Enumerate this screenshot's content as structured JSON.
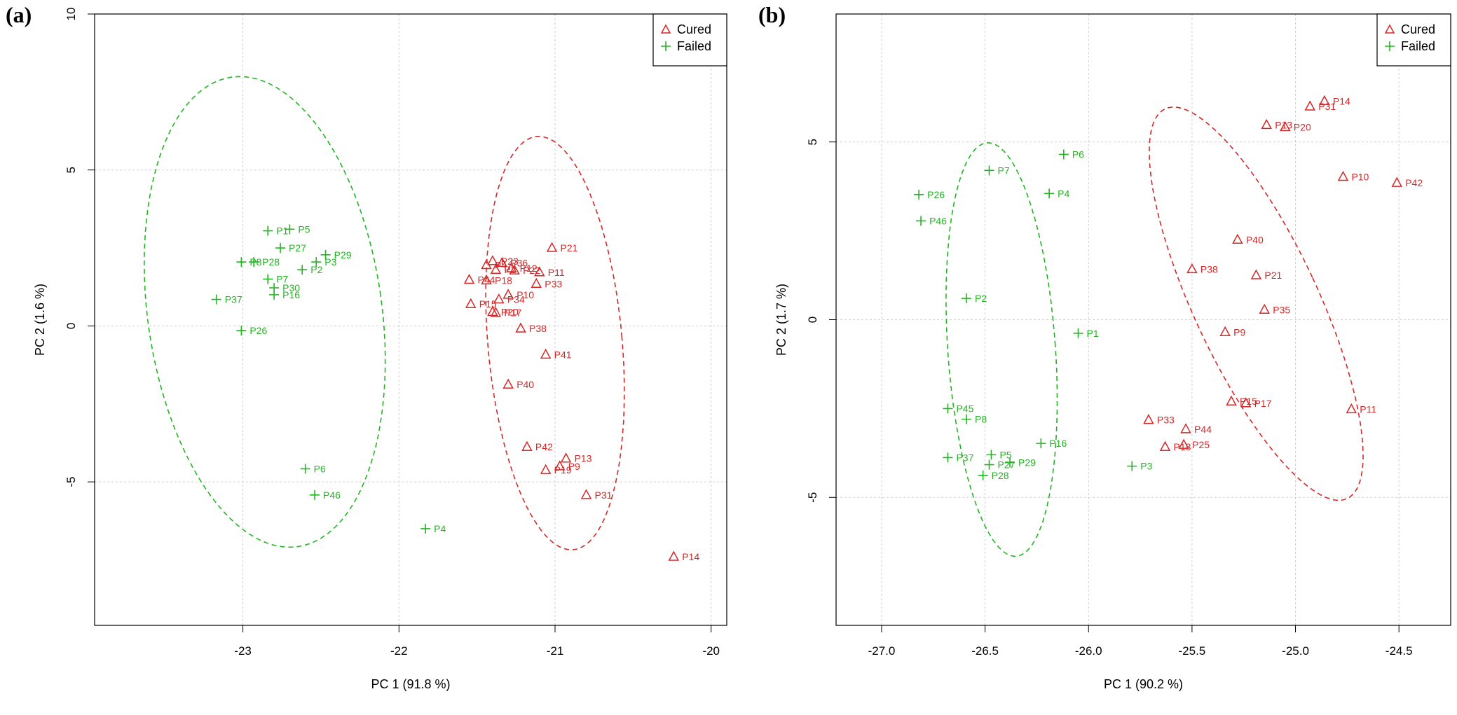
{
  "colors": {
    "cured": "#d62728",
    "failed": "#22b522",
    "axis": "#000000",
    "grid": "#cfcfcf"
  },
  "chart_data": [
    {
      "panel": "(a)",
      "type": "scatter",
      "xlabel": "PC 1 (91.8 %)",
      "ylabel": "PC 2 (1.6 %)",
      "xlim": [
        -23.95,
        -19.9
      ],
      "ylim": [
        -9.6,
        10
      ],
      "xticks": [
        -23,
        -22,
        -21,
        -20
      ],
      "yticks": [
        -5,
        0,
        5,
        10
      ],
      "grid": true,
      "legend": {
        "position": "top-right",
        "entries": [
          "Cured",
          "Failed"
        ]
      },
      "series": [
        {
          "name": "Cured",
          "marker": "triangle",
          "points": [
            {
              "x": -21.02,
              "y": 2.5,
              "label": "P21"
            },
            {
              "x": -21.4,
              "y": 2.08,
              "label": "P23"
            },
            {
              "x": -21.34,
              "y": 2.02,
              "label": "P36"
            },
            {
              "x": -21.44,
              "y": 1.95,
              "label": "P4"
            },
            {
              "x": -21.28,
              "y": 1.85,
              "label": "P12"
            },
            {
              "x": -21.38,
              "y": 1.8,
              "label": "P2"
            },
            {
              "x": -21.26,
              "y": 1.78,
              "label": "P22"
            },
            {
              "x": -21.1,
              "y": 1.72,
              "label": "P11"
            },
            {
              "x": -21.55,
              "y": 1.48,
              "label": "P44"
            },
            {
              "x": -21.44,
              "y": 1.46,
              "label": "P18"
            },
            {
              "x": -21.12,
              "y": 1.35,
              "label": "P33"
            },
            {
              "x": -21.3,
              "y": 1.0,
              "label": "P10"
            },
            {
              "x": -21.36,
              "y": 0.85,
              "label": "P34"
            },
            {
              "x": -21.54,
              "y": 0.7,
              "label": "P15"
            },
            {
              "x": -21.4,
              "y": 0.45,
              "label": "P20"
            },
            {
              "x": -21.38,
              "y": 0.42,
              "label": "P17"
            },
            {
              "x": -21.22,
              "y": -0.08,
              "label": "P38"
            },
            {
              "x": -21.06,
              "y": -0.92,
              "label": "P41"
            },
            {
              "x": -21.3,
              "y": -1.88,
              "label": "P40"
            },
            {
              "x": -21.18,
              "y": -3.88,
              "label": "P42"
            },
            {
              "x": -20.93,
              "y": -4.25,
              "label": "P13"
            },
            {
              "x": -20.97,
              "y": -4.5,
              "label": "P9"
            },
            {
              "x": -21.06,
              "y": -4.62,
              "label": "P19"
            },
            {
              "x": -20.8,
              "y": -5.42,
              "label": "P31"
            },
            {
              "x": -20.24,
              "y": -7.4,
              "label": "P14"
            }
          ]
        },
        {
          "name": "Failed",
          "marker": "plus",
          "points": [
            {
              "x": -22.7,
              "y": 3.1,
              "label": "P5"
            },
            {
              "x": -22.84,
              "y": 3.05,
              "label": "P1"
            },
            {
              "x": -22.76,
              "y": 2.5,
              "label": "P27"
            },
            {
              "x": -22.47,
              "y": 2.28,
              "label": "P29"
            },
            {
              "x": -22.53,
              "y": 2.05,
              "label": "P3"
            },
            {
              "x": -23.01,
              "y": 2.05,
              "label": "P8"
            },
            {
              "x": -22.93,
              "y": 2.05,
              "label": "P28"
            },
            {
              "x": -22.62,
              "y": 1.8,
              "label": "P2"
            },
            {
              "x": -22.84,
              "y": 1.5,
              "label": "P7"
            },
            {
              "x": -22.8,
              "y": 1.22,
              "label": "P30"
            },
            {
              "x": -22.8,
              "y": 1.0,
              "label": "P16"
            },
            {
              "x": -23.17,
              "y": 0.85,
              "label": "P37"
            },
            {
              "x": -23.01,
              "y": -0.15,
              "label": "P26"
            },
            {
              "x": -22.6,
              "y": -4.58,
              "label": "P6"
            },
            {
              "x": -22.54,
              "y": -5.42,
              "label": "P46"
            },
            {
              "x": -21.83,
              "y": -6.5,
              "label": "P4"
            }
          ]
        }
      ],
      "ellipses": [
        {
          "group": "Failed",
          "center": [
            -22.86,
            0.45
          ],
          "semi_axes": [
            0.75,
            7.6
          ],
          "rotation_deg": 8
        },
        {
          "group": "Cured",
          "center": [
            -21.0,
            -0.55
          ],
          "semi_axes": [
            0.43,
            6.65
          ],
          "rotation_deg": 5
        }
      ]
    },
    {
      "panel": "(b)",
      "type": "scatter",
      "xlabel": "PC 1 (90.2 %)",
      "ylabel": "PC 2 (1.7 %)",
      "xlim": [
        -27.22,
        -24.25
      ],
      "ylim": [
        -8.6,
        8.6
      ],
      "xticks": [
        -27.0,
        -26.5,
        -26.0,
        -25.5,
        -25.0,
        -24.5
      ],
      "xtick_labels": [
        "-27.0",
        "-26.5",
        "-26.0",
        "-25.5",
        "-25.0",
        "-24.5"
      ],
      "yticks": [
        -5,
        0,
        5
      ],
      "grid": true,
      "legend": {
        "position": "top-right",
        "entries": [
          "Cured",
          "Failed"
        ]
      },
      "series": [
        {
          "name": "Cured",
          "marker": "triangle",
          "points": [
            {
              "x": -24.86,
              "y": 6.15,
              "label": "P14"
            },
            {
              "x": -24.93,
              "y": 6.0,
              "label": "P31"
            },
            {
              "x": -25.14,
              "y": 5.48,
              "label": "P13"
            },
            {
              "x": -25.05,
              "y": 5.42,
              "label": "P20"
            },
            {
              "x": -24.77,
              "y": 4.02,
              "label": "P10"
            },
            {
              "x": -24.51,
              "y": 3.85,
              "label": "P42"
            },
            {
              "x": -25.28,
              "y": 2.25,
              "label": "P40"
            },
            {
              "x": -25.5,
              "y": 1.42,
              "label": "P38"
            },
            {
              "x": -25.19,
              "y": 1.25,
              "label": "P21"
            },
            {
              "x": -25.15,
              "y": 0.28,
              "label": "P35"
            },
            {
              "x": -25.34,
              "y": -0.35,
              "label": "P9"
            },
            {
              "x": -25.31,
              "y": -2.3,
              "label": "P15"
            },
            {
              "x": -25.24,
              "y": -2.35,
              "label": "P17"
            },
            {
              "x": -24.73,
              "y": -2.52,
              "label": "P11"
            },
            {
              "x": -25.71,
              "y": -2.82,
              "label": "P33"
            },
            {
              "x": -25.53,
              "y": -3.08,
              "label": "P44"
            },
            {
              "x": -25.54,
              "y": -3.52,
              "label": "P25"
            },
            {
              "x": -25.63,
              "y": -3.58,
              "label": "P18"
            }
          ]
        },
        {
          "name": "Failed",
          "marker": "plus",
          "points": [
            {
              "x": -26.12,
              "y": 4.65,
              "label": "P6"
            },
            {
              "x": -26.48,
              "y": 4.2,
              "label": "P7"
            },
            {
              "x": -26.82,
              "y": 3.52,
              "label": "P26"
            },
            {
              "x": -26.19,
              "y": 3.55,
              "label": "P4"
            },
            {
              "x": -26.81,
              "y": 2.78,
              "label": "P46"
            },
            {
              "x": -26.59,
              "y": 0.6,
              "label": "P2"
            },
            {
              "x": -26.05,
              "y": -0.38,
              "label": "P1"
            },
            {
              "x": -26.68,
              "y": -2.5,
              "label": "P45"
            },
            {
              "x": -26.59,
              "y": -2.8,
              "label": "P8"
            },
            {
              "x": -26.23,
              "y": -3.48,
              "label": "P16"
            },
            {
              "x": -26.47,
              "y": -3.8,
              "label": "P5"
            },
            {
              "x": -26.68,
              "y": -3.88,
              "label": "P37"
            },
            {
              "x": -26.48,
              "y": -4.08,
              "label": "P27"
            },
            {
              "x": -26.38,
              "y": -4.02,
              "label": "P29"
            },
            {
              "x": -25.79,
              "y": -4.12,
              "label": "P3"
            },
            {
              "x": -26.51,
              "y": -4.38,
              "label": "P28"
            }
          ]
        }
      ],
      "ellipses": [
        {
          "group": "Failed",
          "center": [
            -26.42,
            -0.84
          ],
          "semi_axes": [
            0.26,
            5.83
          ],
          "rotation_deg": 4
        },
        {
          "group": "Cured",
          "center": [
            -25.19,
            0.45
          ],
          "semi_axes": [
            0.3,
            6.05
          ],
          "rotation_deg": 25
        }
      ]
    }
  ]
}
